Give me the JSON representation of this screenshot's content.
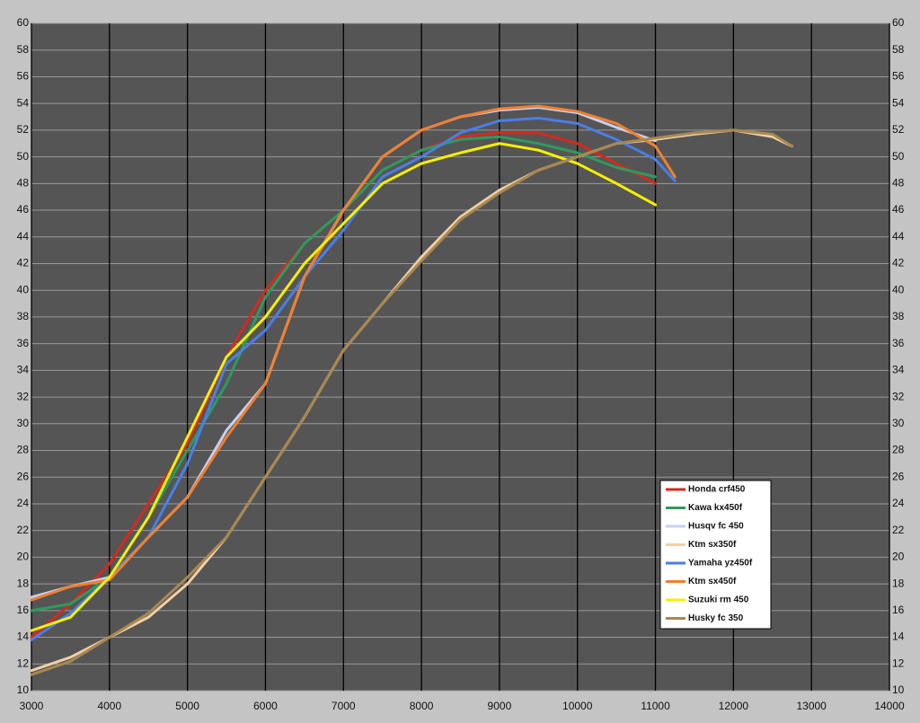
{
  "chart_data": {
    "type": "line",
    "x": [
      3000,
      3500,
      4000,
      4500,
      5000,
      5500,
      6000,
      6500,
      7000,
      7500,
      8000,
      8500,
      9000,
      9500,
      10000,
      10500,
      11000,
      11250,
      11500,
      12000,
      12500,
      12750
    ],
    "series": [
      {
        "name": "Honda crf450",
        "color": "#d42a1e",
        "values": [
          14,
          16.5,
          19.5,
          24,
          28.5,
          35,
          40,
          43.5,
          46,
          49,
          50.5,
          51.5,
          51.8,
          51.8,
          51,
          49.5,
          48,
          null,
          null,
          null,
          null,
          null
        ]
      },
      {
        "name": "Kawa kx450f",
        "color": "#2e9a5e",
        "values": [
          16,
          16.5,
          18.5,
          23,
          28,
          33,
          39.5,
          43.5,
          46,
          49,
          50.5,
          51.3,
          51.5,
          51,
          50.3,
          49.2,
          48.5,
          null,
          null,
          null,
          null,
          null
        ]
      },
      {
        "name": "Husqv fc 450",
        "color": "#c8d0f0",
        "values": [
          17,
          17.8,
          18.5,
          21.5,
          24.5,
          29.5,
          33,
          41,
          46,
          50,
          52,
          53,
          53.5,
          53.7,
          53.3,
          52.2,
          51.2,
          null,
          null,
          null,
          null,
          null
        ]
      },
      {
        "name": "Ktm sx350f",
        "color": "#f0d0a8",
        "values": [
          11.5,
          12.5,
          14,
          15.5,
          18,
          21.5,
          26,
          30.5,
          35.5,
          39,
          42.5,
          45.5,
          47.5,
          49,
          50,
          51,
          51.3,
          51.5,
          51.7,
          52,
          51.5,
          50.8
        ]
      },
      {
        "name": "Yamaha yz450f",
        "color": "#4a7ee8",
        "values": [
          13.8,
          15.8,
          18.5,
          21.5,
          27,
          34.5,
          37,
          41,
          44.5,
          48.5,
          50,
          51.8,
          52.7,
          52.9,
          52.5,
          51.3,
          49.8,
          48.2,
          null,
          null,
          null,
          null
        ]
      },
      {
        "name": "Ktm sx450f",
        "color": "#f08030",
        "values": [
          16.8,
          17.8,
          18.3,
          21.5,
          24.5,
          29,
          33,
          41,
          46,
          50,
          52,
          53,
          53.6,
          53.8,
          53.4,
          52.5,
          50.8,
          48.5,
          null,
          null,
          null,
          null
        ]
      },
      {
        "name": "Suzuki rm 450",
        "color": "#f5f000",
        "values": [
          14.5,
          15.5,
          18.5,
          23,
          29,
          35,
          38,
          42,
          45,
          48,
          49.5,
          50.3,
          51,
          50.5,
          49.5,
          48,
          46.4,
          null,
          null,
          null,
          null,
          null
        ]
      },
      {
        "name": "Husky fc 350",
        "color": "#a88850",
        "values": [
          11.2,
          12.2,
          14,
          15.8,
          18.5,
          21.5,
          26,
          30.5,
          35.5,
          39,
          42.2,
          45.3,
          47.3,
          49,
          50,
          51,
          51.4,
          51.6,
          51.8,
          52,
          51.7,
          50.8
        ]
      }
    ],
    "xlim": [
      3000,
      14000
    ],
    "xticks": [
      3000,
      4000,
      5000,
      6000,
      7000,
      8000,
      9000,
      10000,
      11000,
      12000,
      13000,
      14000
    ],
    "ylim": [
      10,
      60
    ],
    "yticks": [
      10,
      12,
      14,
      16,
      18,
      20,
      22,
      24,
      26,
      28,
      30,
      32,
      34,
      36,
      38,
      40,
      42,
      44,
      46,
      48,
      50,
      52,
      54,
      56,
      58,
      60
    ],
    "grid": true,
    "legend": "lower right"
  }
}
